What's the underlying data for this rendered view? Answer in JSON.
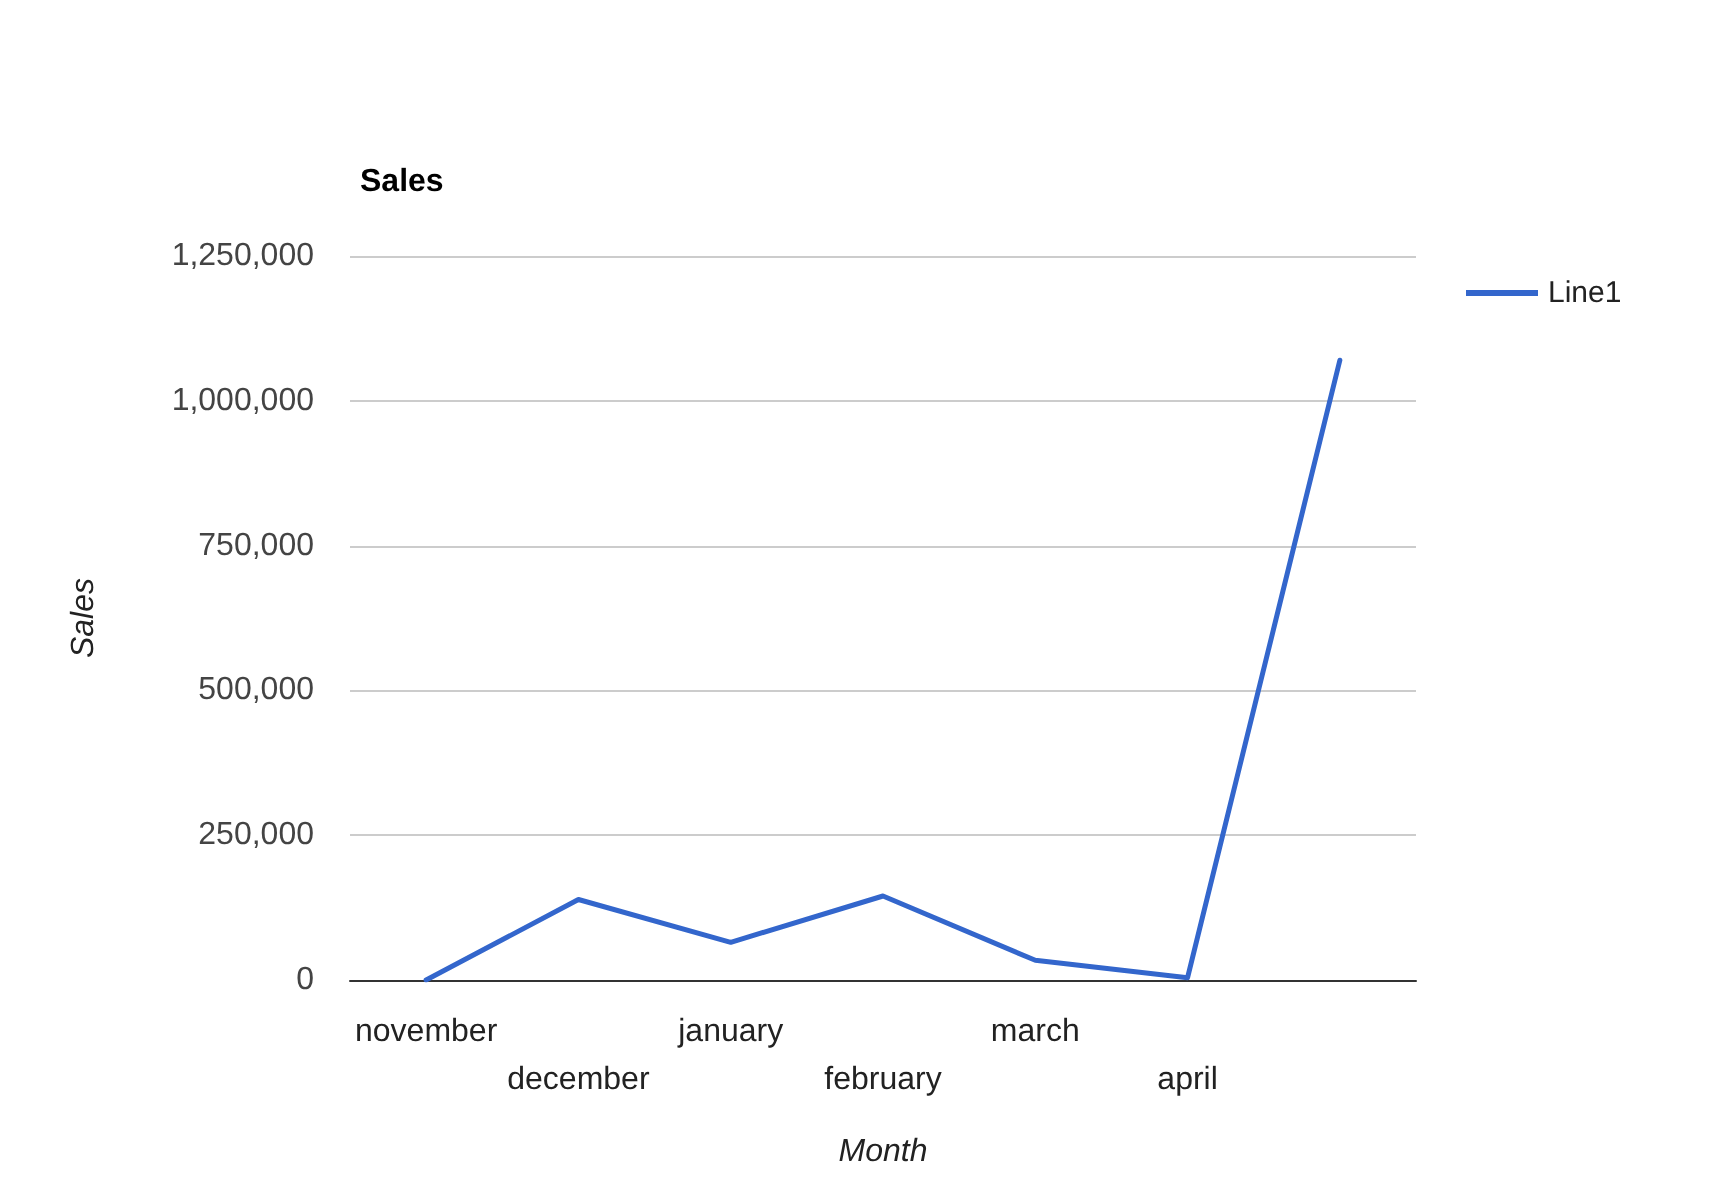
{
  "chart_data": {
    "type": "line",
    "title": "Sales",
    "xlabel": "Month",
    "ylabel": "Sales",
    "categories": [
      "november",
      "december",
      "january",
      "february",
      "march",
      "april",
      null
    ],
    "series": [
      {
        "name": "Line1",
        "color": "#3366cc",
        "values": [
          0,
          139000,
          65000,
          145000,
          34000,
          4000,
          1070000
        ]
      }
    ],
    "ylim": [
      0,
      1250000
    ],
    "yticks": [
      0,
      {
        "value": 250000,
        "label": "250,000"
      },
      {
        "value": 500000,
        "label": "500,000"
      },
      {
        "value": 750000,
        "label": "750,000"
      },
      {
        "value": 1000000,
        "label": "1,000,000"
      },
      {
        "value": 1250000,
        "label": "1,250,000"
      }
    ],
    "grid": "y",
    "legend": "top right",
    "marker": "none",
    "line_style": "solid"
  }
}
